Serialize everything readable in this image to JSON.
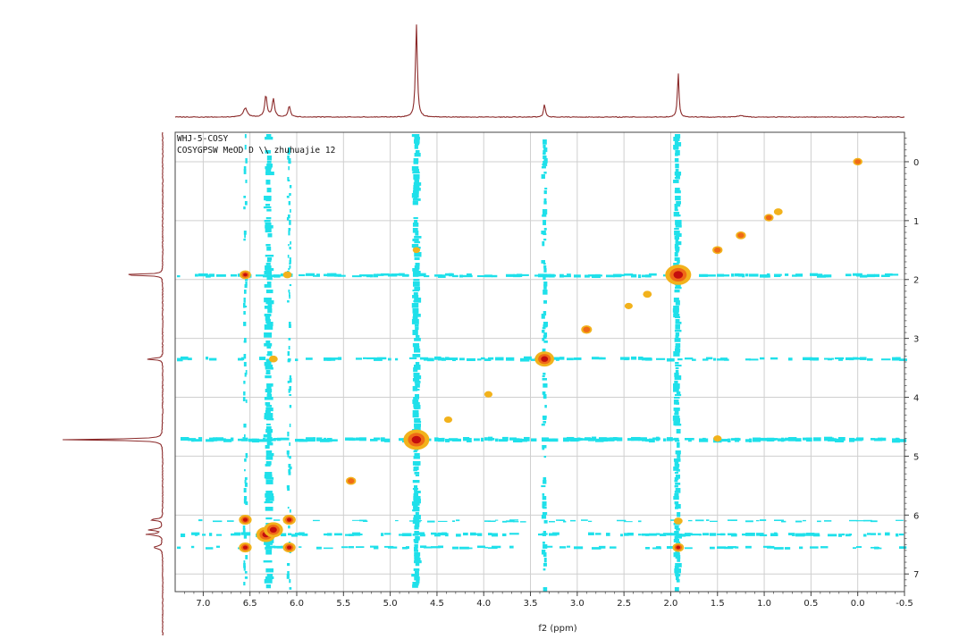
{
  "chart_data": {
    "type": "heatmap",
    "header_lines": [
      "WHJ-5-COSY",
      "COSYGPSW MeOD D \\\\ zhuhuajie 12"
    ],
    "xlabel": "f2 (ppm)",
    "xlim": [
      7.3,
      -0.5
    ],
    "ylim": [
      -0.5,
      7.3
    ],
    "x_ticks": [
      "7.0",
      "6.5",
      "6.0",
      "5.5",
      "5.0",
      "4.5",
      "4.0",
      "3.5",
      "3.0",
      "2.5",
      "2.0",
      "1.5",
      "1.0",
      "0.5",
      "0.0",
      "-0.5"
    ],
    "x_tick_values": [
      7.0,
      6.5,
      6.0,
      5.5,
      5.0,
      4.5,
      4.0,
      3.5,
      3.0,
      2.5,
      2.0,
      1.5,
      1.0,
      0.5,
      0.0,
      -0.5
    ],
    "y_ticks": [
      "0",
      "1",
      "2",
      "3",
      "4",
      "5",
      "6",
      "7"
    ],
    "y_tick_values": [
      0,
      1,
      2,
      3,
      4,
      5,
      6,
      7
    ],
    "grid": true,
    "colors": {
      "projection": "#8b2a2a",
      "t1_noise": "#1fe0ea",
      "peak_outer": "#f2b21c",
      "peak_mid": "#ef6a16",
      "peak_core": "#c40e0e",
      "grid": "#cfcfcf",
      "frame": "#444444"
    },
    "proton_shifts": [
      6.55,
      6.33,
      6.25,
      6.08,
      5.42,
      4.72,
      3.35,
      1.92
    ],
    "solvent_shifts": [
      4.75,
      3.35,
      1.93
    ],
    "diagonal_peaks": [
      {
        "x": 6.55,
        "y": 6.55,
        "size": 1
      },
      {
        "x": 6.33,
        "y": 6.33,
        "size": 2
      },
      {
        "x": 6.25,
        "y": 6.25,
        "size": 2
      },
      {
        "x": 6.08,
        "y": 6.08,
        "size": 1
      },
      {
        "x": 5.42,
        "y": 5.42,
        "size": 0.6
      },
      {
        "x": 4.72,
        "y": 4.72,
        "size": 3
      },
      {
        "x": 4.38,
        "y": 4.38,
        "size": 0.3
      },
      {
        "x": 3.95,
        "y": 3.95,
        "size": 0.3
      },
      {
        "x": 3.35,
        "y": 3.35,
        "size": 2
      },
      {
        "x": 2.9,
        "y": 2.85,
        "size": 0.7
      },
      {
        "x": 2.45,
        "y": 2.45,
        "size": 0.3
      },
      {
        "x": 2.25,
        "y": 2.25,
        "size": 0.4
      },
      {
        "x": 1.92,
        "y": 1.92,
        "size": 3
      },
      {
        "x": 1.5,
        "y": 1.5,
        "size": 0.6
      },
      {
        "x": 1.25,
        "y": 1.25,
        "size": 0.6
      },
      {
        "x": 0.95,
        "y": 0.95,
        "size": 0.5
      },
      {
        "x": 0.85,
        "y": 0.85,
        "size": 0.4
      },
      {
        "x": 0.0,
        "y": 0.0,
        "size": 0.5
      }
    ],
    "cross_peaks": [
      {
        "x": 6.55,
        "y": 1.92,
        "size": 0.8
      },
      {
        "x": 6.1,
        "y": 1.92,
        "size": 0.4
      },
      {
        "x": 1.92,
        "y": 6.55,
        "size": 0.8
      },
      {
        "x": 1.92,
        "y": 6.1,
        "size": 0.4
      },
      {
        "x": 6.55,
        "y": 6.08,
        "size": 1
      },
      {
        "x": 6.08,
        "y": 6.55,
        "size": 1
      },
      {
        "x": 6.08,
        "y": 6.08,
        "size": 1
      },
      {
        "x": 6.25,
        "y": 3.35,
        "size": 0.4
      },
      {
        "x": 4.72,
        "y": 1.5,
        "size": 0.2
      },
      {
        "x": 1.5,
        "y": 4.7,
        "size": 0.3
      }
    ]
  }
}
